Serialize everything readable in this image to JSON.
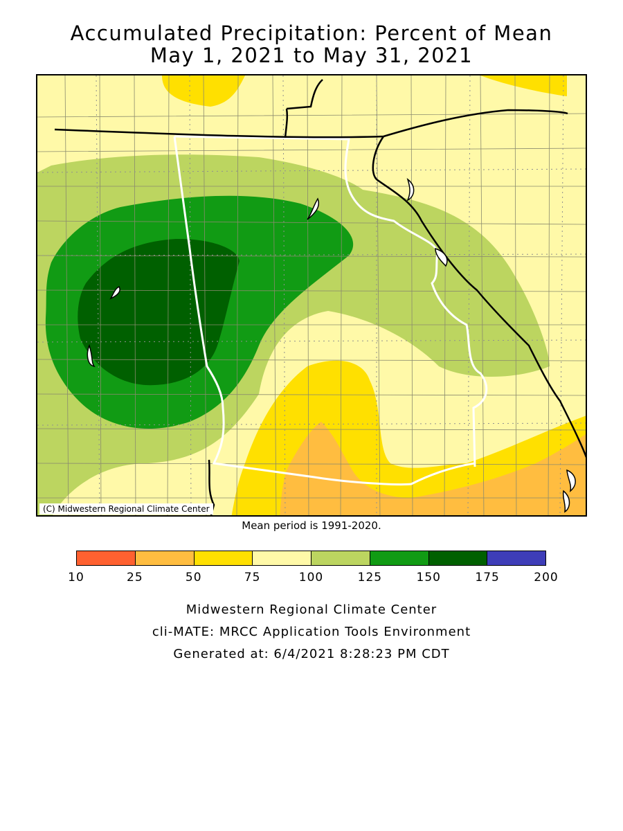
{
  "header": {
    "title": "Accumulated Precipitation: Percent of Mean",
    "subtitle": "May 1, 2021 to May 31, 2021"
  },
  "map": {
    "copyright": "(C) Midwestern Regional Climate Center",
    "mean_period": "Mean period is 1991-2020."
  },
  "legend": {
    "ticks": [
      "10",
      "25",
      "50",
      "75",
      "100",
      "125",
      "150",
      "175",
      "200"
    ],
    "colors": [
      "#ff6130",
      "#ffbd40",
      "#ffe000",
      "#fff9a8",
      "#bcd560",
      "#119b14",
      "#006000",
      "#3e3db8"
    ]
  },
  "footer": {
    "line1": "Midwestern Regional Climate Center",
    "line2": "cli-MATE: MRCC Application Tools Environment",
    "line3": "Generated at: 6/4/2021 8:28:23 PM CDT"
  }
}
